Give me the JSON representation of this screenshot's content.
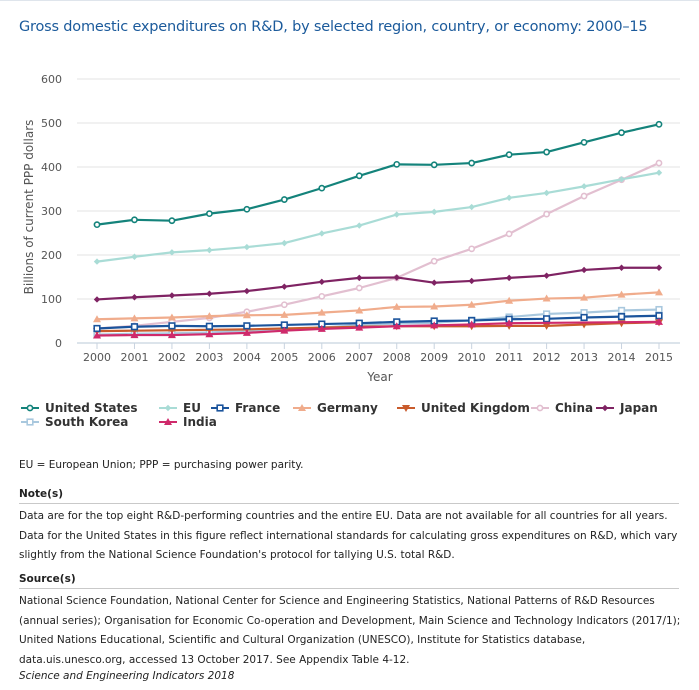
{
  "title": "Gross domestic expenditures on R&D, by selected region, country, or economy: 2000–15",
  "chart_data": {
    "type": "line",
    "title": "Gross domestic expenditures on R&D, by selected region, country, or economy: 2000–15",
    "xlabel": "Year",
    "ylabel": "Billions of current PPP dollars",
    "ylim": [
      0,
      600
    ],
    "yticks": [
      0,
      100,
      200,
      300,
      400,
      500,
      600
    ],
    "grid": true,
    "legend_position": "bottom",
    "x": [
      2000,
      2001,
      2002,
      2003,
      2004,
      2005,
      2006,
      2007,
      2008,
      2009,
      2010,
      2011,
      2012,
      2013,
      2014,
      2015
    ],
    "series": [
      {
        "name": "United States",
        "color": "#14837b",
        "marker": "circle-open",
        "values": [
          269,
          280,
          278,
          294,
          304,
          326,
          352,
          380,
          406,
          405,
          409,
          428,
          434,
          456,
          478,
          497
        ]
      },
      {
        "name": "EU",
        "color": "#a9dcd6",
        "marker": "diamond",
        "values": [
          185,
          196,
          206,
          211,
          218,
          227,
          249,
          267,
          292,
          298,
          309,
          330,
          341,
          356,
          372,
          387
        ]
      },
      {
        "name": "France",
        "color": "#1b549c",
        "marker": "square-open",
        "values": [
          33,
          37,
          39,
          38,
          39,
          41,
          43,
          45,
          48,
          50,
          51,
          54,
          55,
          58,
          60,
          62
        ]
      },
      {
        "name": "Germany",
        "color": "#f0ac8c",
        "marker": "triangle-up",
        "values": [
          54,
          56,
          58,
          61,
          63,
          64,
          69,
          74,
          82,
          83,
          87,
          96,
          101,
          103,
          110,
          115
        ]
      },
      {
        "name": "United Kingdom",
        "color": "#c95b2c",
        "marker": "triangle-down",
        "values": [
          27,
          28,
          29,
          30,
          31,
          33,
          35,
          37,
          38,
          38,
          38,
          39,
          39,
          42,
          45,
          47
        ]
      },
      {
        "name": "China",
        "color": "#e2bfd0",
        "marker": "circle-open",
        "values": [
          33,
          39,
          48,
          57,
          71,
          87,
          106,
          125,
          148,
          186,
          214,
          248,
          293,
          334,
          371,
          409
        ]
      },
      {
        "name": "Japan",
        "color": "#7f2363",
        "marker": "diamond",
        "values": [
          99,
          104,
          108,
          112,
          118,
          128,
          139,
          148,
          149,
          137,
          141,
          148,
          153,
          166,
          171,
          171
        ]
      },
      {
        "name": "South Korea",
        "color": "#a9c8de",
        "marker": "square-open",
        "values": [
          19,
          21,
          22,
          24,
          28,
          30,
          35,
          41,
          44,
          46,
          52,
          59,
          66,
          69,
          74,
          76
        ]
      },
      {
        "name": "India",
        "color": "#cf2a6b",
        "marker": "triangle-up",
        "values": [
          17,
          18,
          18,
          20,
          23,
          28,
          32,
          35,
          38,
          40,
          42,
          45,
          null,
          null,
          null,
          48
        ]
      }
    ]
  },
  "legend": {
    "items": [
      "United States",
      "EU",
      "France",
      "Germany",
      "United Kingdom",
      "China",
      "Japan",
      "South Korea",
      "India"
    ]
  },
  "abbreviations": "EU = European Union; PPP = purchasing power parity.",
  "notes": {
    "heading": "Note(s)",
    "text": "Data are for the top eight R&D-performing countries and the entire EU. Data are not available for all countries for all years. Data for the United States in this figure reflect international standards for calculating gross expenditures on R&D, which vary slightly from the National Science Foundation's protocol for tallying U.S. total R&D."
  },
  "sources": {
    "heading": "Source(s)",
    "text": "National Science Foundation, National Center for Science and Engineering Statistics, National Patterns of R&D Resources (annual series); Organisation for Economic Co-operation and Development, Main Science and Technology Indicators (2017/1); United Nations Educational, Scientific and Cultural Organization (UNESCO), Institute for Statistics database, data.uis.unesco.org, accessed 13 October 2017. See Appendix Table 4-12."
  },
  "credit": "Science and Engineering Indicators 2018"
}
